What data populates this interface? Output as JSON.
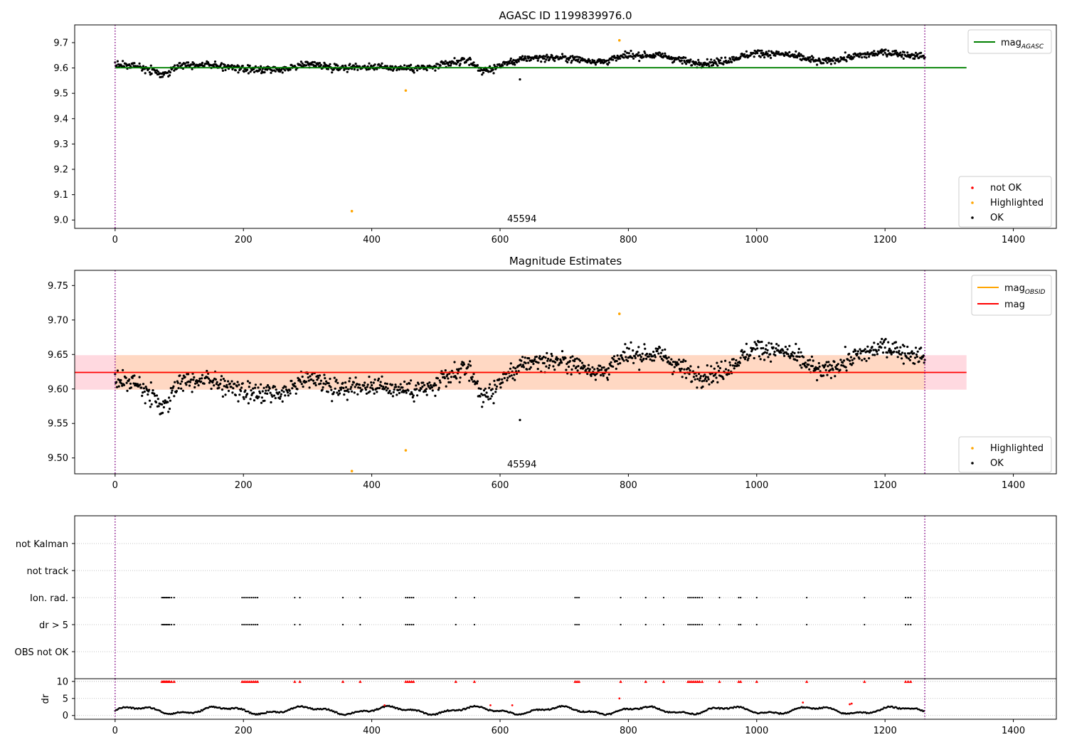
{
  "chart_data": [
    {
      "type": "scatter",
      "title": "AGASC ID 1199839976.0",
      "xlabel": "",
      "ylabel": "",
      "xlim": [
        -63,
        1467
      ],
      "ylim": [
        8.967,
        9.77
      ],
      "x_ticks": [
        0,
        200,
        400,
        600,
        800,
        1000,
        1200,
        1400
      ],
      "y_ticks": [
        9.0,
        9.1,
        9.2,
        9.3,
        9.4,
        9.5,
        9.6,
        9.7
      ],
      "y_decimals": 1,
      "grid": false,
      "obsid_label": "45594",
      "obsid_label_x": 634,
      "obsid_span": [
        0,
        1262
      ],
      "reference_line": {
        "name": "mag_AGASC",
        "name_main": "mag",
        "name_sub": "AGASC",
        "y": 9.601,
        "x": [
          0,
          1327
        ],
        "color": "#008000"
      },
      "band": null,
      "highlighted_points": [
        [
          369,
          9.035
        ],
        [
          453,
          9.511
        ],
        [
          786,
          9.709
        ]
      ],
      "outlier": [
        631,
        9.555
      ],
      "trend": [
        [
          0,
          9.615
        ],
        [
          40,
          9.605
        ],
        [
          75,
          9.572
        ],
        [
          100,
          9.612
        ],
        [
          140,
          9.615
        ],
        [
          200,
          9.595
        ],
        [
          260,
          9.59
        ],
        [
          300,
          9.618
        ],
        [
          340,
          9.603
        ],
        [
          400,
          9.605
        ],
        [
          450,
          9.6
        ],
        [
          490,
          9.6
        ],
        [
          550,
          9.632
        ],
        [
          575,
          9.585
        ],
        [
          610,
          9.62
        ],
        [
          650,
          9.641
        ],
        [
          700,
          9.64
        ],
        [
          760,
          9.624
        ],
        [
          800,
          9.65
        ],
        [
          850,
          9.65
        ],
        [
          900,
          9.62
        ],
        [
          940,
          9.622
        ],
        [
          1000,
          9.66
        ],
        [
          1050,
          9.652
        ],
        [
          1100,
          9.623
        ],
        [
          1150,
          9.645
        ],
        [
          1200,
          9.662
        ],
        [
          1262,
          9.645
        ]
      ],
      "legend_line_position": "upper-right",
      "legend_points_position": "lower-right",
      "legend_points": [
        {
          "label": "not OK",
          "color": "#ff0000"
        },
        {
          "label": "Highlighted",
          "color": "#ffa500"
        },
        {
          "label": "OK",
          "color": "#000000"
        }
      ]
    },
    {
      "type": "scatter",
      "title": "Magnitude Estimates",
      "xlabel": "",
      "ylabel": "",
      "xlim": [
        -63,
        1467
      ],
      "ylim": [
        9.477,
        9.772
      ],
      "x_ticks": [
        0,
        200,
        400,
        600,
        800,
        1000,
        1200,
        1400
      ],
      "y_ticks": [
        9.5,
        9.55,
        9.6,
        9.65,
        9.7,
        9.75
      ],
      "y_decimals": 2,
      "grid": false,
      "obsid_label": "45594",
      "obsid_label_x": 634,
      "obsid_span": [
        0,
        1262
      ],
      "band": {
        "y": [
          9.599,
          9.649
        ],
        "x_outer": [
          -63,
          1327
        ],
        "x_inner": [
          0,
          1262
        ],
        "outer_color": "#ffc0cb",
        "inner_color": "#ffd7bd"
      },
      "lines": [
        {
          "name": "mag_OBSID",
          "name_main": "mag",
          "name_sub": "OBSID",
          "color": "#ffa500",
          "y": 9.624,
          "x": [
            0,
            1262
          ]
        },
        {
          "name": "mag",
          "name_main": "mag",
          "name_sub": "",
          "color": "#ff0000",
          "y": 9.624,
          "x": [
            -63,
            1327
          ]
        }
      ],
      "highlighted_points": [
        [
          369,
          9.481
        ],
        [
          453,
          9.511
        ],
        [
          786,
          9.709
        ]
      ],
      "outlier": [
        631,
        9.555
      ],
      "trend": [
        [
          0,
          9.615
        ],
        [
          40,
          9.605
        ],
        [
          75,
          9.572
        ],
        [
          100,
          9.612
        ],
        [
          140,
          9.615
        ],
        [
          200,
          9.595
        ],
        [
          260,
          9.59
        ],
        [
          300,
          9.618
        ],
        [
          340,
          9.603
        ],
        [
          400,
          9.605
        ],
        [
          450,
          9.6
        ],
        [
          490,
          9.6
        ],
        [
          550,
          9.632
        ],
        [
          575,
          9.585
        ],
        [
          610,
          9.62
        ],
        [
          650,
          9.641
        ],
        [
          700,
          9.64
        ],
        [
          760,
          9.624
        ],
        [
          800,
          9.65
        ],
        [
          850,
          9.65
        ],
        [
          900,
          9.62
        ],
        [
          940,
          9.622
        ],
        [
          1000,
          9.66
        ],
        [
          1050,
          9.652
        ],
        [
          1100,
          9.623
        ],
        [
          1150,
          9.645
        ],
        [
          1200,
          9.662
        ],
        [
          1262,
          9.645
        ]
      ],
      "legend_line_position": "upper-right",
      "legend_points_position": "lower-right",
      "legend_points": [
        {
          "label": "Highlighted",
          "color": "#ffa500"
        },
        {
          "label": "OK",
          "color": "#000000"
        }
      ]
    },
    {
      "type": "scatter",
      "title": "",
      "xlabel": "",
      "ylabel": "",
      "xlim": [
        -63,
        1467
      ],
      "obsid_span": [
        0,
        1262
      ],
      "flag_rows": [
        "not Kalman",
        "not track",
        "Ion. rad.",
        "dr > 5",
        "OBS not OK"
      ],
      "flag_events_x": [
        73,
        75,
        77,
        79,
        81,
        83,
        85,
        88,
        92,
        198,
        201,
        204,
        207,
        210,
        213,
        216,
        219,
        222,
        280,
        288,
        355,
        382,
        453,
        456,
        459,
        462,
        465,
        531,
        560,
        717,
        720,
        723,
        788,
        827,
        855,
        893,
        896,
        899,
        902,
        905,
        908,
        911,
        915,
        942,
        972,
        975,
        1000,
        1078,
        1168,
        1232,
        1236,
        1240
      ]
    },
    {
      "type": "scatter",
      "title": "",
      "xlabel": "",
      "ylabel": "dr",
      "xlim": [
        -63,
        1467
      ],
      "ylim": [
        -1.1,
        10.8
      ],
      "y_ticks": [
        0,
        5,
        10
      ],
      "x_ticks": [
        0,
        200,
        400,
        600,
        800,
        1000,
        1200,
        1400
      ],
      "grid": true,
      "obsid_span": [
        0,
        1262
      ],
      "dr_clip": 10,
      "dr_outliers": [
        [
          420,
          3.0
        ],
        [
          585,
          3.0
        ],
        [
          619,
          3.0
        ],
        [
          786,
          5.0
        ],
        [
          1072,
          3.8
        ],
        [
          1145,
          3.3
        ],
        [
          1148,
          3.5
        ]
      ]
    }
  ]
}
